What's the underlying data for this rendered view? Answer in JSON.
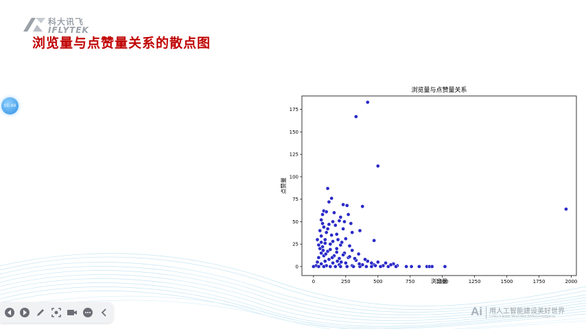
{
  "slide": {
    "title": "浏览量与点赞量关系的散点图"
  },
  "logo": {
    "cn": "科大讯飞",
    "en": "IFLYTEK",
    "icon": "iflytek-logo-icon"
  },
  "timer": {
    "label": "01:49"
  },
  "footer": {
    "ai": "Ai",
    "cn": "用人工智能建设美好世界",
    "en": "Create A Better World With Artificial Intelligence"
  },
  "toolbar": {
    "items": [
      {
        "icon": "prev-icon"
      },
      {
        "icon": "next-icon"
      },
      {
        "icon": "pen-icon"
      },
      {
        "icon": "screenshot-icon"
      },
      {
        "icon": "camera-icon"
      },
      {
        "icon": "more-icon"
      },
      {
        "icon": "collapse-icon"
      }
    ]
  },
  "chart_data": {
    "type": "scatter",
    "title": "浏览量与点赞量关系",
    "xlabel": "浏览量",
    "ylabel": "点赞量",
    "xlim": [
      -90,
      2040
    ],
    "ylim": [
      -10,
      190
    ],
    "xticks": [
      0,
      250,
      500,
      750,
      1000,
      1250,
      1500,
      1750,
      2000
    ],
    "yticks": [
      0,
      25,
      50,
      75,
      100,
      125,
      150,
      175
    ],
    "color": "#2b2bc8",
    "edge_color": "#ffffff",
    "grid": false,
    "points": [
      [
        420,
        183
      ],
      [
        330,
        167
      ],
      [
        500,
        112
      ],
      [
        1960,
        64
      ],
      [
        110,
        87
      ],
      [
        140,
        76
      ],
      [
        120,
        72
      ],
      [
        260,
        68
      ],
      [
        380,
        67
      ],
      [
        230,
        69
      ],
      [
        80,
        62
      ],
      [
        70,
        58
      ],
      [
        100,
        61
      ],
      [
        160,
        60
      ],
      [
        270,
        58
      ],
      [
        210,
        55
      ],
      [
        60,
        52
      ],
      [
        150,
        50
      ],
      [
        200,
        51
      ],
      [
        240,
        50
      ],
      [
        290,
        48
      ],
      [
        170,
        46
      ],
      [
        120,
        47
      ],
      [
        80,
        44
      ],
      [
        50,
        40
      ],
      [
        230,
        42
      ],
      [
        360,
        40
      ],
      [
        300,
        38
      ],
      [
        180,
        36
      ],
      [
        100,
        38
      ],
      [
        60,
        34
      ],
      [
        90,
        30
      ],
      [
        150,
        28
      ],
      [
        250,
        31
      ],
      [
        470,
        29
      ],
      [
        130,
        25
      ],
      [
        210,
        24
      ],
      [
        280,
        23
      ],
      [
        70,
        22
      ],
      [
        50,
        20
      ],
      [
        180,
        20
      ],
      [
        300,
        18
      ],
      [
        110,
        17
      ],
      [
        240,
        15
      ],
      [
        60,
        15
      ],
      [
        350,
        14
      ],
      [
        80,
        12
      ],
      [
        160,
        12
      ],
      [
        270,
        10
      ],
      [
        40,
        10
      ],
      [
        200,
        9
      ],
      [
        120,
        8
      ],
      [
        330,
        7
      ],
      [
        90,
        6
      ],
      [
        420,
        6
      ],
      [
        30,
        5
      ],
      [
        500,
        5
      ],
      [
        150,
        4
      ],
      [
        250,
        4
      ],
      [
        560,
        4
      ],
      [
        620,
        3
      ],
      [
        60,
        3
      ],
      [
        200,
        2
      ],
      [
        380,
        2
      ],
      [
        470,
        2
      ],
      [
        20,
        1
      ],
      [
        100,
        1
      ],
      [
        300,
        1
      ],
      [
        540,
        1
      ],
      [
        650,
        1
      ],
      [
        0,
        0
      ],
      [
        40,
        0
      ],
      [
        80,
        0
      ],
      [
        130,
        0
      ],
      [
        170,
        0
      ],
      [
        210,
        0
      ],
      [
        260,
        0
      ],
      [
        310,
        0
      ],
      [
        360,
        0
      ],
      [
        410,
        0
      ],
      [
        450,
        0
      ],
      [
        520,
        0
      ],
      [
        580,
        0
      ],
      [
        640,
        0
      ],
      [
        720,
        0
      ],
      [
        760,
        0
      ],
      [
        820,
        0
      ],
      [
        880,
        0
      ],
      [
        900,
        0
      ],
      [
        920,
        0
      ],
      [
        1020,
        0
      ],
      [
        70,
        48
      ],
      [
        110,
        42
      ],
      [
        140,
        35
      ],
      [
        190,
        30
      ],
      [
        220,
        27
      ],
      [
        90,
        26
      ],
      [
        60,
        27
      ],
      [
        130,
        19
      ],
      [
        180,
        16
      ],
      [
        230,
        13
      ],
      [
        280,
        11
      ],
      [
        320,
        9
      ],
      [
        400,
        8
      ],
      [
        450,
        4
      ],
      [
        30,
        30
      ],
      [
        40,
        24
      ],
      [
        75,
        18
      ],
      [
        95,
        14
      ],
      [
        145,
        10
      ],
      [
        185,
        6
      ],
      [
        215,
        5
      ],
      [
        355,
        3
      ],
      [
        480,
        1
      ],
      [
        600,
        2
      ]
    ]
  }
}
